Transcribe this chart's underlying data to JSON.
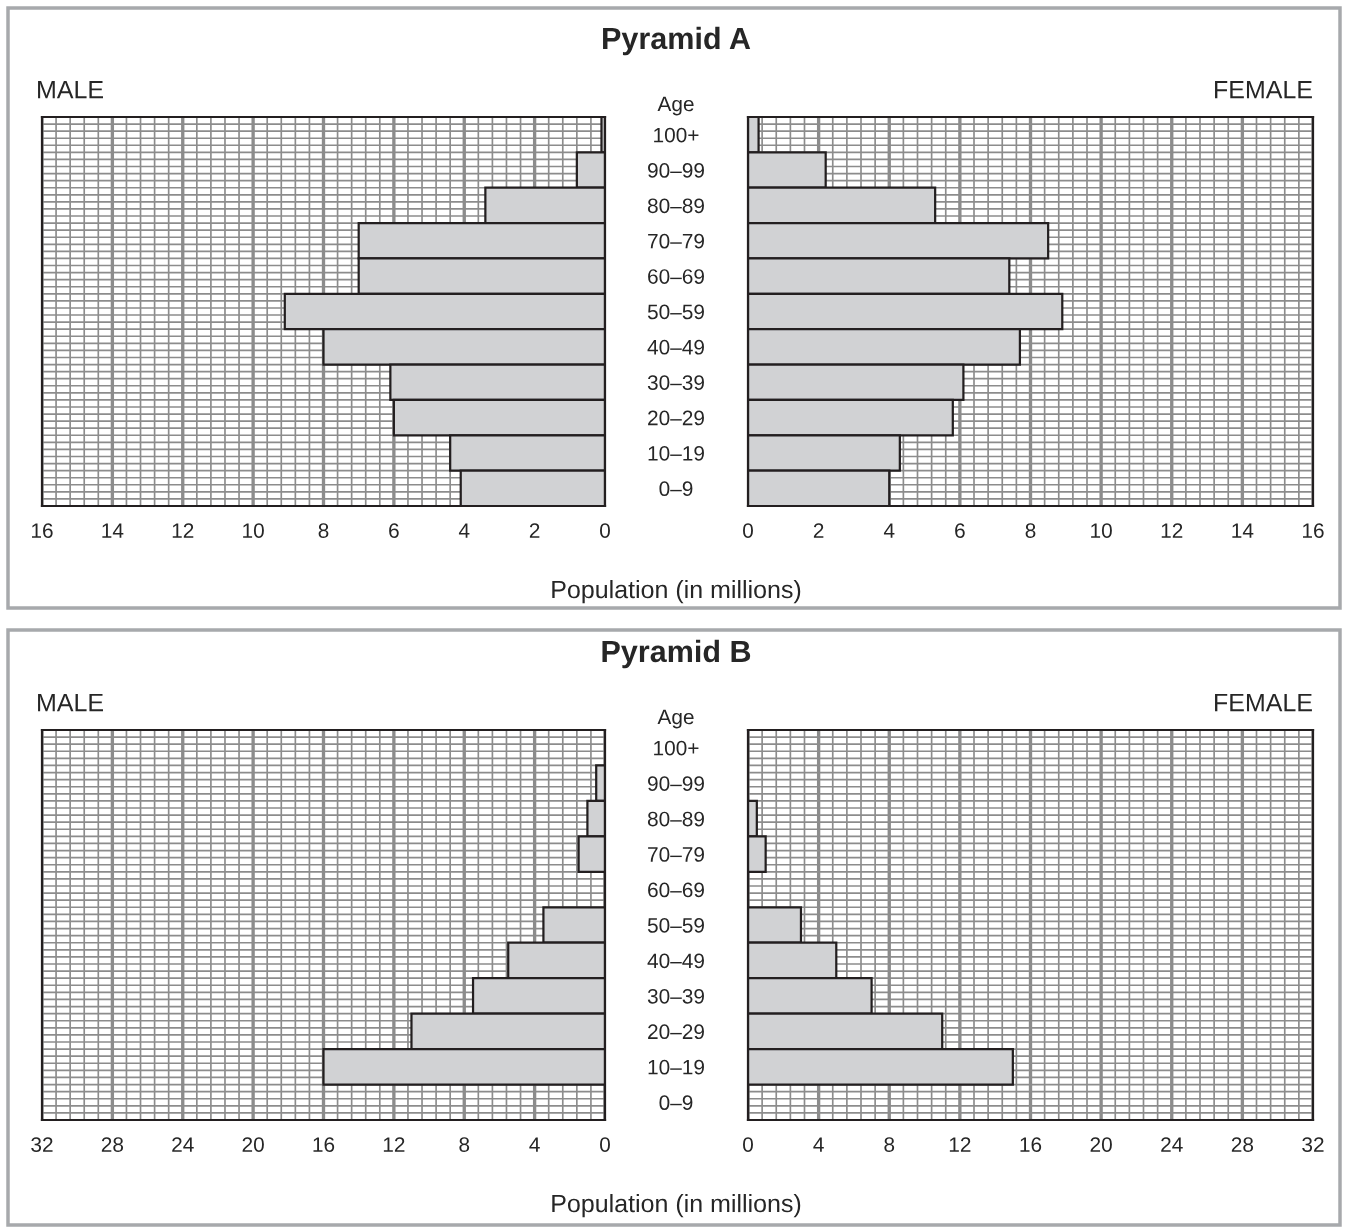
{
  "chart_data": [
    {
      "type": "bar",
      "orientation": "horizontal",
      "title": "Pyramid A",
      "xlabel": "Population (in millions)",
      "ylabel": "Age",
      "categories": [
        "100+",
        "90–99",
        "80–89",
        "70–79",
        "60–69",
        "50–59",
        "40–49",
        "30–39",
        "20–29",
        "10–19",
        "0–9"
      ],
      "series": [
        {
          "name": "MALE",
          "color": "#d1d2d4",
          "values": [
            0.1,
            0.8,
            3.4,
            7.0,
            7.0,
            9.1,
            8.0,
            6.1,
            6.0,
            4.4,
            4.1
          ]
        }
      ],
      "xlim": [
        16,
        0
      ],
      "xticks": [
        16,
        14,
        12,
        10,
        8,
        6,
        4,
        2,
        0
      ],
      "grid": true
    },
    {
      "type": "bar",
      "orientation": "horizontal",
      "categories": [
        null,
        null,
        null,
        null,
        null,
        null,
        null,
        null,
        null,
        null,
        null
      ],
      "series": [
        {
          "name": "FEMALE",
          "color": "#d1d2d4",
          "values": [
            0.3,
            2.2,
            5.3,
            8.5,
            7.4,
            8.9,
            7.7,
            6.1,
            5.8,
            4.3,
            4.0
          ]
        }
      ],
      "xlim": [
        0,
        16
      ],
      "xticks": [
        0,
        2,
        4,
        6,
        8,
        10,
        12,
        14,
        16
      ],
      "tick_labels": "x",
      "grid": true
    },
    {
      "type": "bar",
      "orientation": "horizontal",
      "title": "Pyramid B",
      "xlabel": "Population (in millions)",
      "ylabel": "Age",
      "categories": [
        "100+",
        "90–99",
        "80–89",
        "70–79",
        "60–69",
        "50–59",
        "40–49",
        "30–39",
        "20–29",
        "10–19",
        "0–9"
      ],
      "series": [
        {
          "name": "MALE",
          "color": "#d1d2d4",
          "values": [
            null,
            0.5,
            1.0,
            1.5,
            0,
            3.5,
            5.5,
            7.5,
            11,
            16,
            0
          ]
        }
      ],
      "xlim": [
        32,
        0
      ],
      "xticks": [
        32,
        28,
        24,
        20,
        16,
        12,
        8,
        4,
        0
      ],
      "grid": true
    },
    {
      "type": "bar",
      "orientation": "horizontal",
      "categories": [
        null,
        null,
        null,
        null,
        null,
        null,
        null,
        null,
        null,
        null,
        null
      ],
      "series": [
        {
          "name": "FEMALE",
          "color": "#d1d2d4",
          "values": [
            0,
            null,
            0.5,
            1.0,
            0,
            3,
            5,
            7,
            11,
            15,
            0
          ]
        }
      ],
      "xlim": [
        0,
        32
      ],
      "xticks": [
        0,
        4,
        8,
        12,
        16,
        20,
        24,
        28,
        32
      ],
      "tick_labels": "x",
      "grid": true
    }
  ]
}
